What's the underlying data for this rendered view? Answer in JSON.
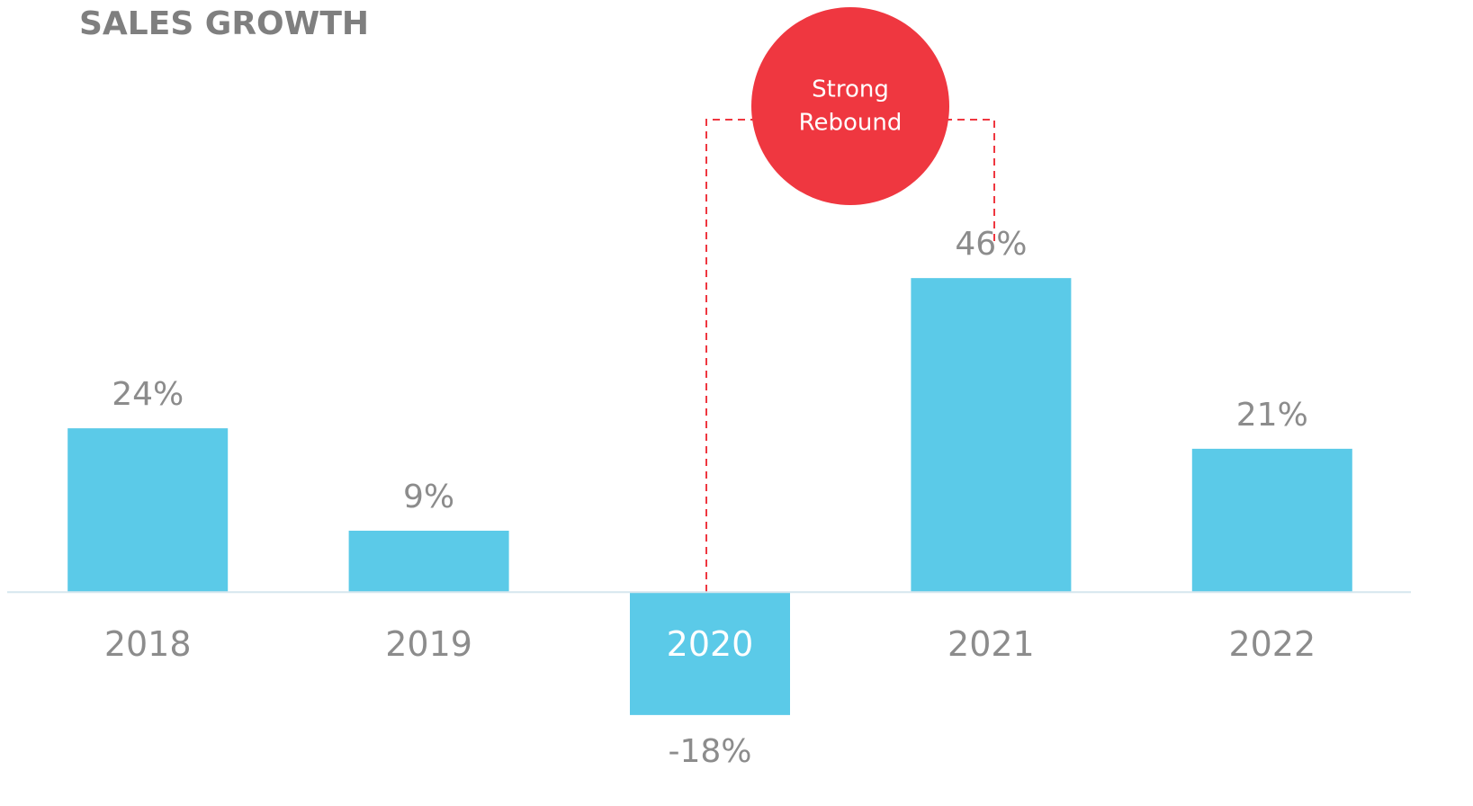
{
  "chart_data": {
    "type": "bar",
    "title": "SALES GROWTH",
    "categories": [
      "2018",
      "2019",
      "2020",
      "2021",
      "2022"
    ],
    "values": [
      24,
      9,
      -18,
      46,
      21
    ],
    "value_labels": [
      "24%",
      "9%",
      "-18%",
      "46%",
      "21%"
    ],
    "color": "#5bcae8",
    "ylim": [
      -25,
      70
    ],
    "annotation": {
      "lines": [
        "Strong",
        "Rebound"
      ],
      "color": "#ef3740"
    }
  }
}
